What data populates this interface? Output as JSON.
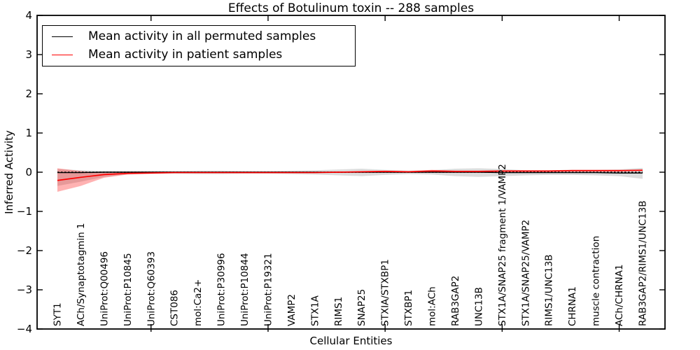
{
  "figure": {
    "title": "Effects of Botulinum toxin -- 288 samples",
    "xlabel": "Cellular Entities",
    "ylabel": "Inferred Activity"
  },
  "legend": {
    "entries": [
      {
        "label": "Mean activity in all permuted samples",
        "color": "#000000"
      },
      {
        "label": "Mean activity in patient samples",
        "color": "#ff0000"
      }
    ]
  },
  "chart_data": {
    "type": "line",
    "title": "Effects of Botulinum toxin -- 288 samples",
    "xlabel": "Cellular Entities",
    "ylabel": "Inferred Activity",
    "ylim": [
      -4,
      4
    ],
    "yticks": [
      4,
      3,
      2,
      1,
      0,
      -1,
      -2,
      -3,
      -4
    ],
    "xtick_major_indices": [
      4,
      9,
      14,
      19,
      24
    ],
    "grid": false,
    "legend_position": "upper left",
    "zero_line": {
      "style": "dashed",
      "color": "#000000",
      "y": 0
    },
    "categories": [
      "SYT1",
      "ACh/Synaptotagmin 1",
      "UniProt:Q00496",
      "UniProt:P10845",
      "UniProt:Q60393",
      "CST086",
      "mol:Ca2+",
      "UniProt:P30996",
      "UniProt:P10844",
      "UniProt:P19321",
      "VAMP2",
      "STX1A",
      "RIMS1",
      "SNAP25",
      "STXIA/STXBP1",
      "STXBP1",
      "mol:ACh",
      "RAB3GAP2",
      "UNC13B",
      "STX1A/SNAP25 fragment 1/VAMP2",
      "STX1A/SNAP25/VAMP2",
      "RIMS1/UNC13B",
      "CHRNA1",
      "muscle contraction",
      "ACh/CHRNA1",
      "RAB3GAP2/RIMS1/UNC13B"
    ],
    "series": [
      {
        "name": "Mean activity in all permuted samples",
        "color": "#000000",
        "values": [
          -0.01,
          -0.01,
          0,
          0,
          0,
          0,
          0,
          0,
          0,
          0,
          0,
          0,
          0,
          0,
          0,
          0,
          0,
          0,
          0,
          -0.01,
          -0.01,
          -0.01,
          -0.01,
          -0.01,
          -0.02,
          -0.02
        ]
      },
      {
        "name": "Mean activity in patient samples",
        "color": "#ff0000",
        "values": [
          -0.21,
          -0.13,
          -0.06,
          -0.03,
          -0.02,
          -0.01,
          -0.01,
          -0.01,
          -0.01,
          -0.01,
          -0.01,
          -0.01,
          0.0,
          0.01,
          0.02,
          0.01,
          0.03,
          0.02,
          0.02,
          0.03,
          0.03,
          0.03,
          0.04,
          0.04,
          0.04,
          0.05
        ]
      }
    ],
    "bands": [
      {
        "name": "permuted samples range",
        "color": "#808080",
        "opacity": 0.28,
        "upper": [
          0.08,
          0.05,
          0.03,
          0.03,
          0.03,
          0.03,
          0.04,
          0.04,
          0.03,
          0.03,
          0.04,
          0.05,
          0.07,
          0.09,
          0.06,
          0.04,
          0.05,
          0.09,
          0.1,
          0.08,
          0.05,
          0.05,
          0.06,
          0.06,
          0.07,
          0.11
        ],
        "lower": [
          -0.35,
          -0.24,
          -0.12,
          -0.05,
          -0.04,
          -0.04,
          -0.05,
          -0.05,
          -0.04,
          -0.04,
          -0.05,
          -0.06,
          -0.08,
          -0.1,
          -0.07,
          -0.05,
          -0.06,
          -0.1,
          -0.12,
          -0.1,
          -0.08,
          -0.07,
          -0.07,
          -0.08,
          -0.1,
          -0.17
        ]
      },
      {
        "name": "patient samples range",
        "color": "#ff0000",
        "opacity": 0.3,
        "upper": [
          0.1,
          0.03,
          -0.02,
          -0.01,
          0.0,
          0.0,
          0.0,
          0.0,
          0.0,
          0.0,
          0.0,
          0.0,
          0.01,
          0.03,
          0.04,
          0.03,
          0.06,
          0.04,
          0.04,
          0.05,
          0.05,
          0.05,
          0.06,
          0.06,
          0.06,
          0.07
        ],
        "lower": [
          -0.5,
          -0.35,
          -0.14,
          -0.06,
          -0.04,
          -0.02,
          -0.02,
          -0.02,
          -0.02,
          -0.02,
          -0.02,
          -0.02,
          -0.01,
          -0.01,
          0.0,
          0.01,
          0.01,
          0.0,
          0.0,
          0.01,
          0.01,
          0.01,
          0.02,
          0.02,
          0.02,
          0.03
        ]
      }
    ]
  }
}
